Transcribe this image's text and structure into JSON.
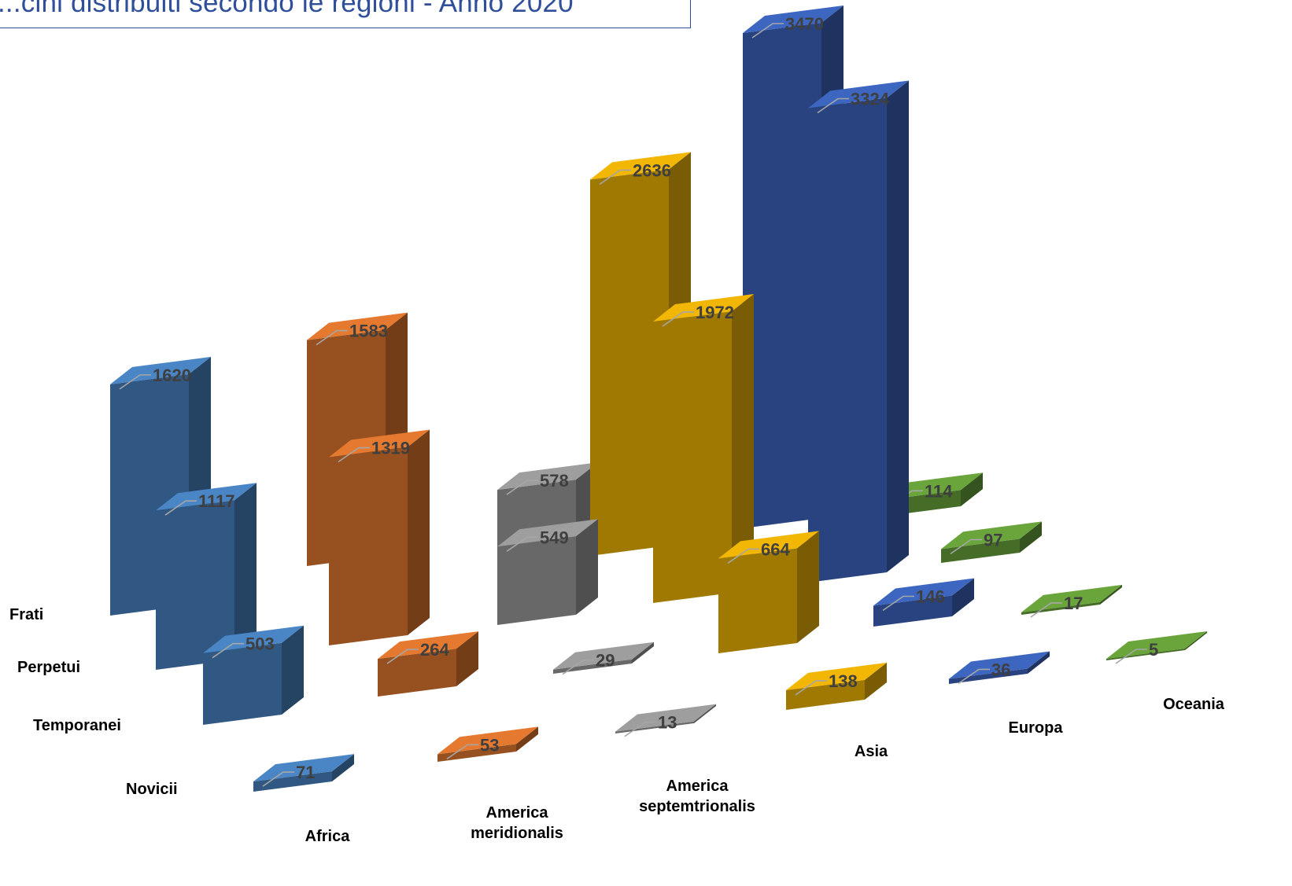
{
  "title": "...cini distribuiti secondo le regioni - Anno 2020",
  "chart_data": {
    "type": "bar",
    "subtype": "3d-column",
    "title": "...cini distribuiti secondo le regioni - Anno 2020",
    "categories": [
      "Africa",
      "America meridionalis",
      "America septemtrionalis",
      "Asia",
      "Europa",
      "Oceania"
    ],
    "series": [
      {
        "name": "Frati",
        "values": [
          1620,
          1583,
          578,
          2636,
          3470,
          114
        ]
      },
      {
        "name": "Perpetui",
        "values": [
          1117,
          1319,
          549,
          1972,
          3324,
          97
        ]
      },
      {
        "name": "Temporanei",
        "values": [
          503,
          264,
          29,
          664,
          146,
          17
        ]
      },
      {
        "name": "Novicii",
        "values": [
          71,
          53,
          13,
          138,
          36,
          5
        ]
      }
    ],
    "category_colors": [
      "#4a86c5",
      "#e5792f",
      "#9e9e9e",
      "#f2b705",
      "#3d66c0",
      "#6aa53c"
    ],
    "grid": false,
    "legend": "none"
  }
}
